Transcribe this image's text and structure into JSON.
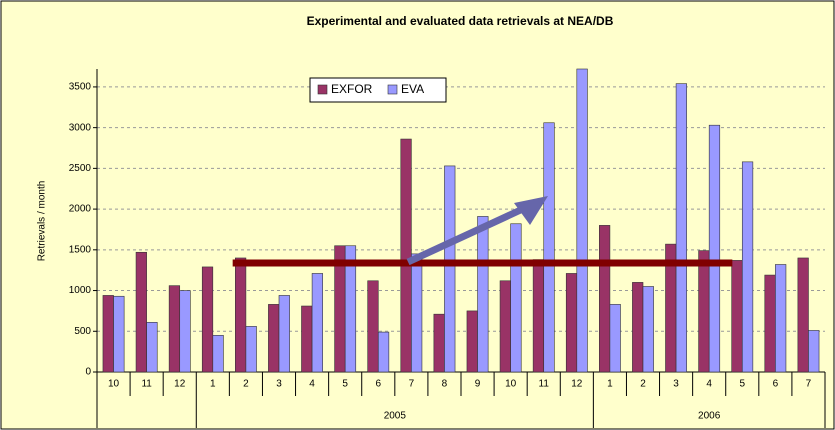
{
  "chart_data": {
    "type": "bar",
    "title": "Experimental and evaluated data retrievals at NEA/DB",
    "y_label": "Retrievals / month",
    "categories": [
      "10",
      "11",
      "12",
      "1",
      "2",
      "3",
      "4",
      "5",
      "6",
      "7",
      "8",
      "9",
      "10",
      "11",
      "12",
      "1",
      "2",
      "3",
      "4",
      "5",
      "6",
      "7"
    ],
    "year_groups": [
      {
        "name": null,
        "count": 3
      },
      {
        "name": "2005",
        "count": 12
      },
      {
        "name": "2006",
        "count": 7
      }
    ],
    "series": [
      {
        "name": "EXFOR",
        "color": "#993366",
        "values": [
          940,
          1470,
          1060,
          1290,
          1400,
          830,
          810,
          1550,
          1120,
          2860,
          710,
          750,
          1120,
          1380,
          1210,
          1800,
          1100,
          1570,
          1490,
          1370,
          1190,
          1400
        ]
      },
      {
        "name": "EVA",
        "color": "#9999ff",
        "values": [
          930,
          610,
          1000,
          450,
          560,
          940,
          1210,
          1550,
          490,
          1450,
          2530,
          1910,
          1820,
          3060,
          3720,
          830,
          1050,
          3540,
          3030,
          2580,
          1320,
          510
        ]
      }
    ],
    "ylim": [
      0,
      3720
    ],
    "yticks": [
      0,
      500,
      1000,
      1500,
      2000,
      2500,
      3000,
      3500
    ],
    "grid": true,
    "legend": "top"
  }
}
